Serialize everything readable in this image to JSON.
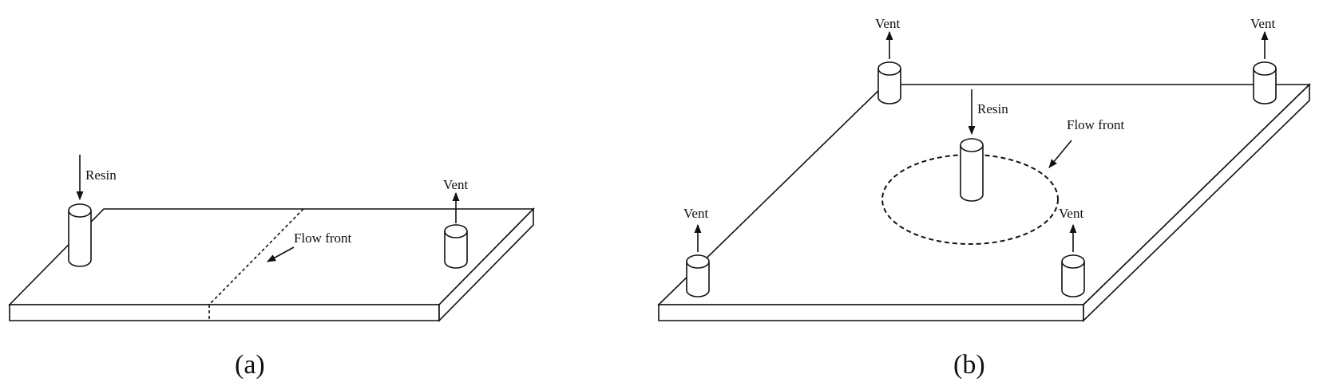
{
  "panel_a": {
    "caption": "(a)",
    "resin_label": "Resin",
    "vent_label": "Vent",
    "flow_front_label": "Flow front"
  },
  "panel_b": {
    "caption": "(b)",
    "resin_label": "Resin",
    "vent_labels": [
      "Vent",
      "Vent",
      "Vent",
      "Vent"
    ],
    "flow_front_label": "Flow front"
  }
}
